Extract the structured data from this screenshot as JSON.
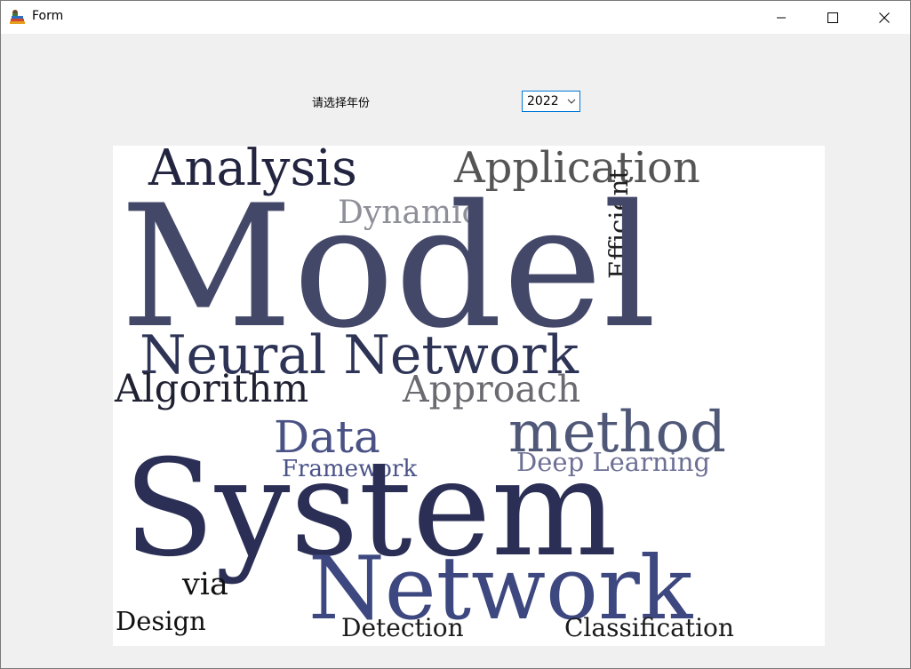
{
  "window": {
    "title": "Form",
    "icon": "app-books-icon"
  },
  "form": {
    "year_label": "请选择年份",
    "year_selected": "2022"
  },
  "wordcloud": {
    "words": [
      {
        "text": "Analysis",
        "color": "#232540"
      },
      {
        "text": "Application",
        "color": "#555555"
      },
      {
        "text": "Dynamic",
        "color": "#8f8f9a"
      },
      {
        "text": "Efficient",
        "color": "#1f1f1f"
      },
      {
        "text": "Model",
        "color": "#444868"
      },
      {
        "text": "Neural Network",
        "color": "#2e3456"
      },
      {
        "text": "Algorithm",
        "color": "#202233"
      },
      {
        "text": "Approach",
        "color": "#6a6a70"
      },
      {
        "text": "Data",
        "color": "#4a5285"
      },
      {
        "text": "method",
        "color": "#505878"
      },
      {
        "text": "Framework",
        "color": "#4a5288"
      },
      {
        "text": "Deep Learning",
        "color": "#6d7095"
      },
      {
        "text": "System",
        "color": "#2b2f55"
      },
      {
        "text": "via",
        "color": "#111111"
      },
      {
        "text": "Network",
        "color": "#3e4880"
      },
      {
        "text": "Design",
        "color": "#111111"
      },
      {
        "text": "Detection",
        "color": "#1a1a1a"
      },
      {
        "text": "Classification",
        "color": "#1a1a1a"
      }
    ]
  }
}
